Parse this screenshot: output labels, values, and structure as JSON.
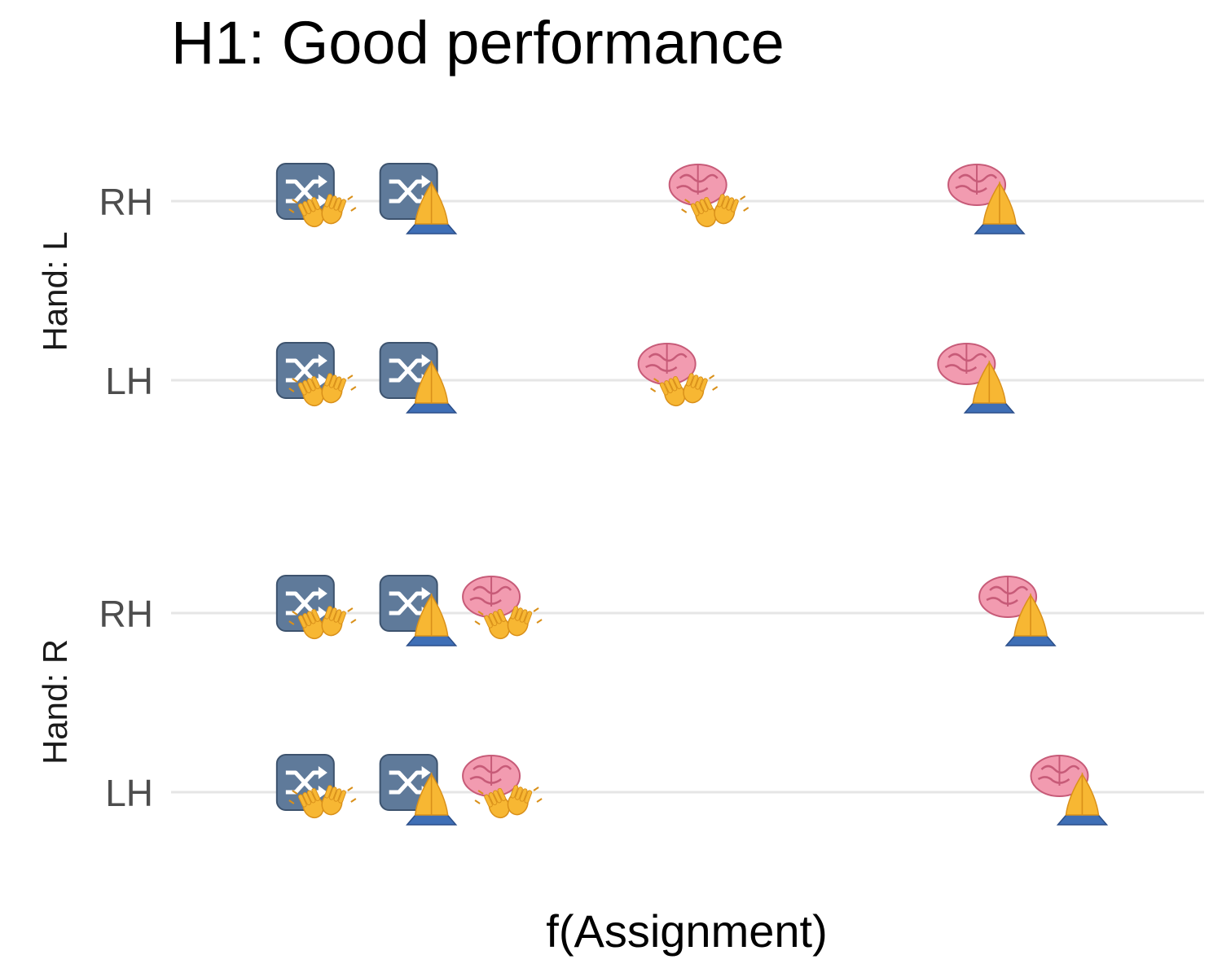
{
  "chart_data": {
    "type": "scatter",
    "title": "H1: Good performance",
    "xlabel": "f(Assignment)",
    "ylabel": "",
    "x_tick_labels_shown": false,
    "xlim": [
      0,
      1
    ],
    "grid": "horizontal major lines only",
    "marker_legend": {
      "random": "shuffle-icon",
      "brain": "brain-icon",
      "wave_hands": "waving-hands-icon",
      "pray_hands": "folded-hands-icon"
    },
    "facets": [
      {
        "label": "Hand: L",
        "rows": [
          {
            "label": "RH",
            "points": [
              {
                "marker": [
                  "random",
                  "wave_hands"
                ],
                "x": 0.13
              },
              {
                "marker": [
                  "random",
                  "pray_hands"
                ],
                "x": 0.23
              },
              {
                "marker": [
                  "brain",
                  "wave_hands"
                ],
                "x": 0.51
              },
              {
                "marker": [
                  "brain",
                  "pray_hands"
                ],
                "x": 0.78
              }
            ]
          },
          {
            "label": "LH",
            "points": [
              {
                "marker": [
                  "random",
                  "wave_hands"
                ],
                "x": 0.13
              },
              {
                "marker": [
                  "random",
                  "pray_hands"
                ],
                "x": 0.23
              },
              {
                "marker": [
                  "brain",
                  "wave_hands"
                ],
                "x": 0.48
              },
              {
                "marker": [
                  "brain",
                  "pray_hands"
                ],
                "x": 0.77
              }
            ]
          }
        ]
      },
      {
        "label": "Hand: R",
        "rows": [
          {
            "label": "RH",
            "points": [
              {
                "marker": [
                  "random",
                  "wave_hands"
                ],
                "x": 0.13
              },
              {
                "marker": [
                  "random",
                  "pray_hands"
                ],
                "x": 0.23
              },
              {
                "marker": [
                  "brain",
                  "wave_hands"
                ],
                "x": 0.31
              },
              {
                "marker": [
                  "brain",
                  "pray_hands"
                ],
                "x": 0.81
              }
            ]
          },
          {
            "label": "LH",
            "points": [
              {
                "marker": [
                  "random",
                  "wave_hands"
                ],
                "x": 0.13
              },
              {
                "marker": [
                  "random",
                  "pray_hands"
                ],
                "x": 0.23
              },
              {
                "marker": [
                  "brain",
                  "wave_hands"
                ],
                "x": 0.31
              },
              {
                "marker": [
                  "brain",
                  "pray_hands"
                ],
                "x": 0.86
              }
            ]
          }
        ]
      }
    ]
  },
  "colors": {
    "random_tile": "#5f7a9a",
    "brain": "#f29bb0",
    "hands": "#f7b733",
    "sleeve": "#3f6fb6",
    "grid": "#e6e6e6"
  }
}
